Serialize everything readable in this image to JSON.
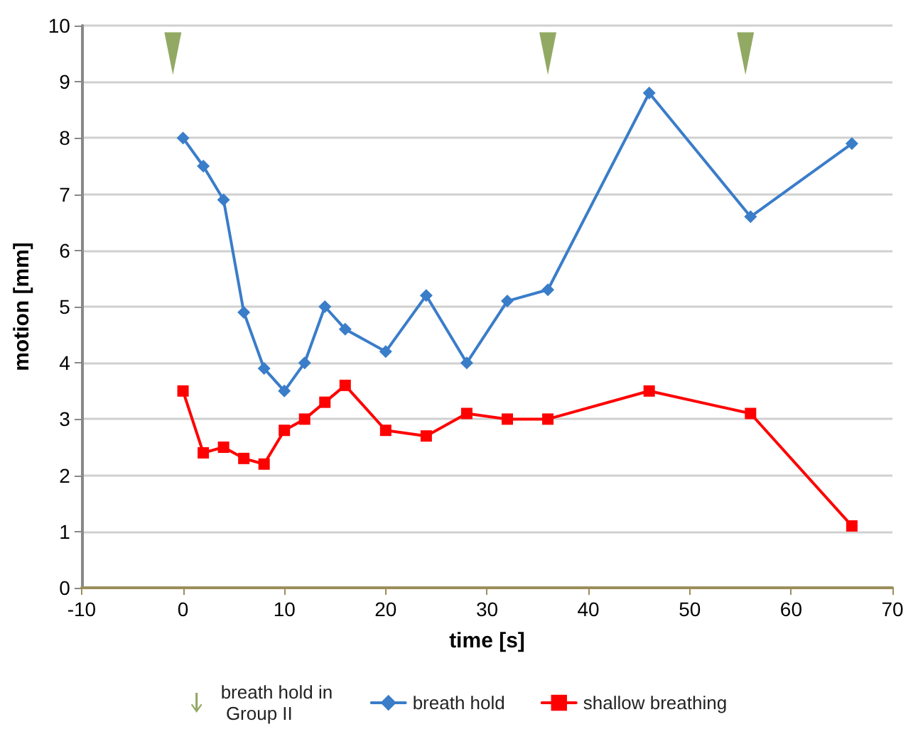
{
  "chart_data": {
    "type": "line",
    "xlabel": "time [s]",
    "ylabel": "motion [mm]",
    "xlim": [
      -10,
      70
    ],
    "xticks": [
      -10,
      0,
      10,
      20,
      30,
      40,
      50,
      60,
      70
    ],
    "ylim": [
      0,
      10
    ],
    "yticks": [
      0,
      1,
      2,
      3,
      4,
      5,
      6,
      7,
      8,
      9,
      10
    ],
    "grid": "y",
    "legend": "bottom",
    "series": [
      {
        "name": "breath hold in Group II",
        "type": "scatter",
        "marker": "triangle",
        "color": "#77933c",
        "x": [
          -1,
          36,
          55.5
        ],
        "values": [
          9.5,
          9.5,
          9.5
        ]
      },
      {
        "name": "breath hold",
        "marker": "diamond",
        "color": "#3a7dc9",
        "x": [
          0,
          2,
          4,
          6,
          8,
          10,
          12,
          14,
          16,
          20,
          24,
          28,
          32,
          36,
          46,
          56,
          66
        ],
        "values": [
          8,
          7.5,
          6.9,
          4.9,
          3.9,
          3.5,
          4.0,
          5.0,
          4.6,
          4.2,
          5.2,
          4.0,
          5.1,
          5.3,
          8.8,
          6.6,
          7.9
        ]
      },
      {
        "name": "shallow breathing",
        "marker": "square",
        "color": "#ff0000",
        "x": [
          0,
          2,
          4,
          6,
          8,
          10,
          12,
          14,
          16,
          20,
          24,
          28,
          32,
          36,
          46,
          56,
          66
        ],
        "values": [
          3.5,
          2.4,
          2.5,
          2.3,
          2.2,
          2.8,
          3.0,
          3.3,
          3.6,
          2.8,
          2.7,
          3.1,
          3.0,
          3.0,
          3.5,
          3.1,
          1.1
        ]
      }
    ]
  }
}
